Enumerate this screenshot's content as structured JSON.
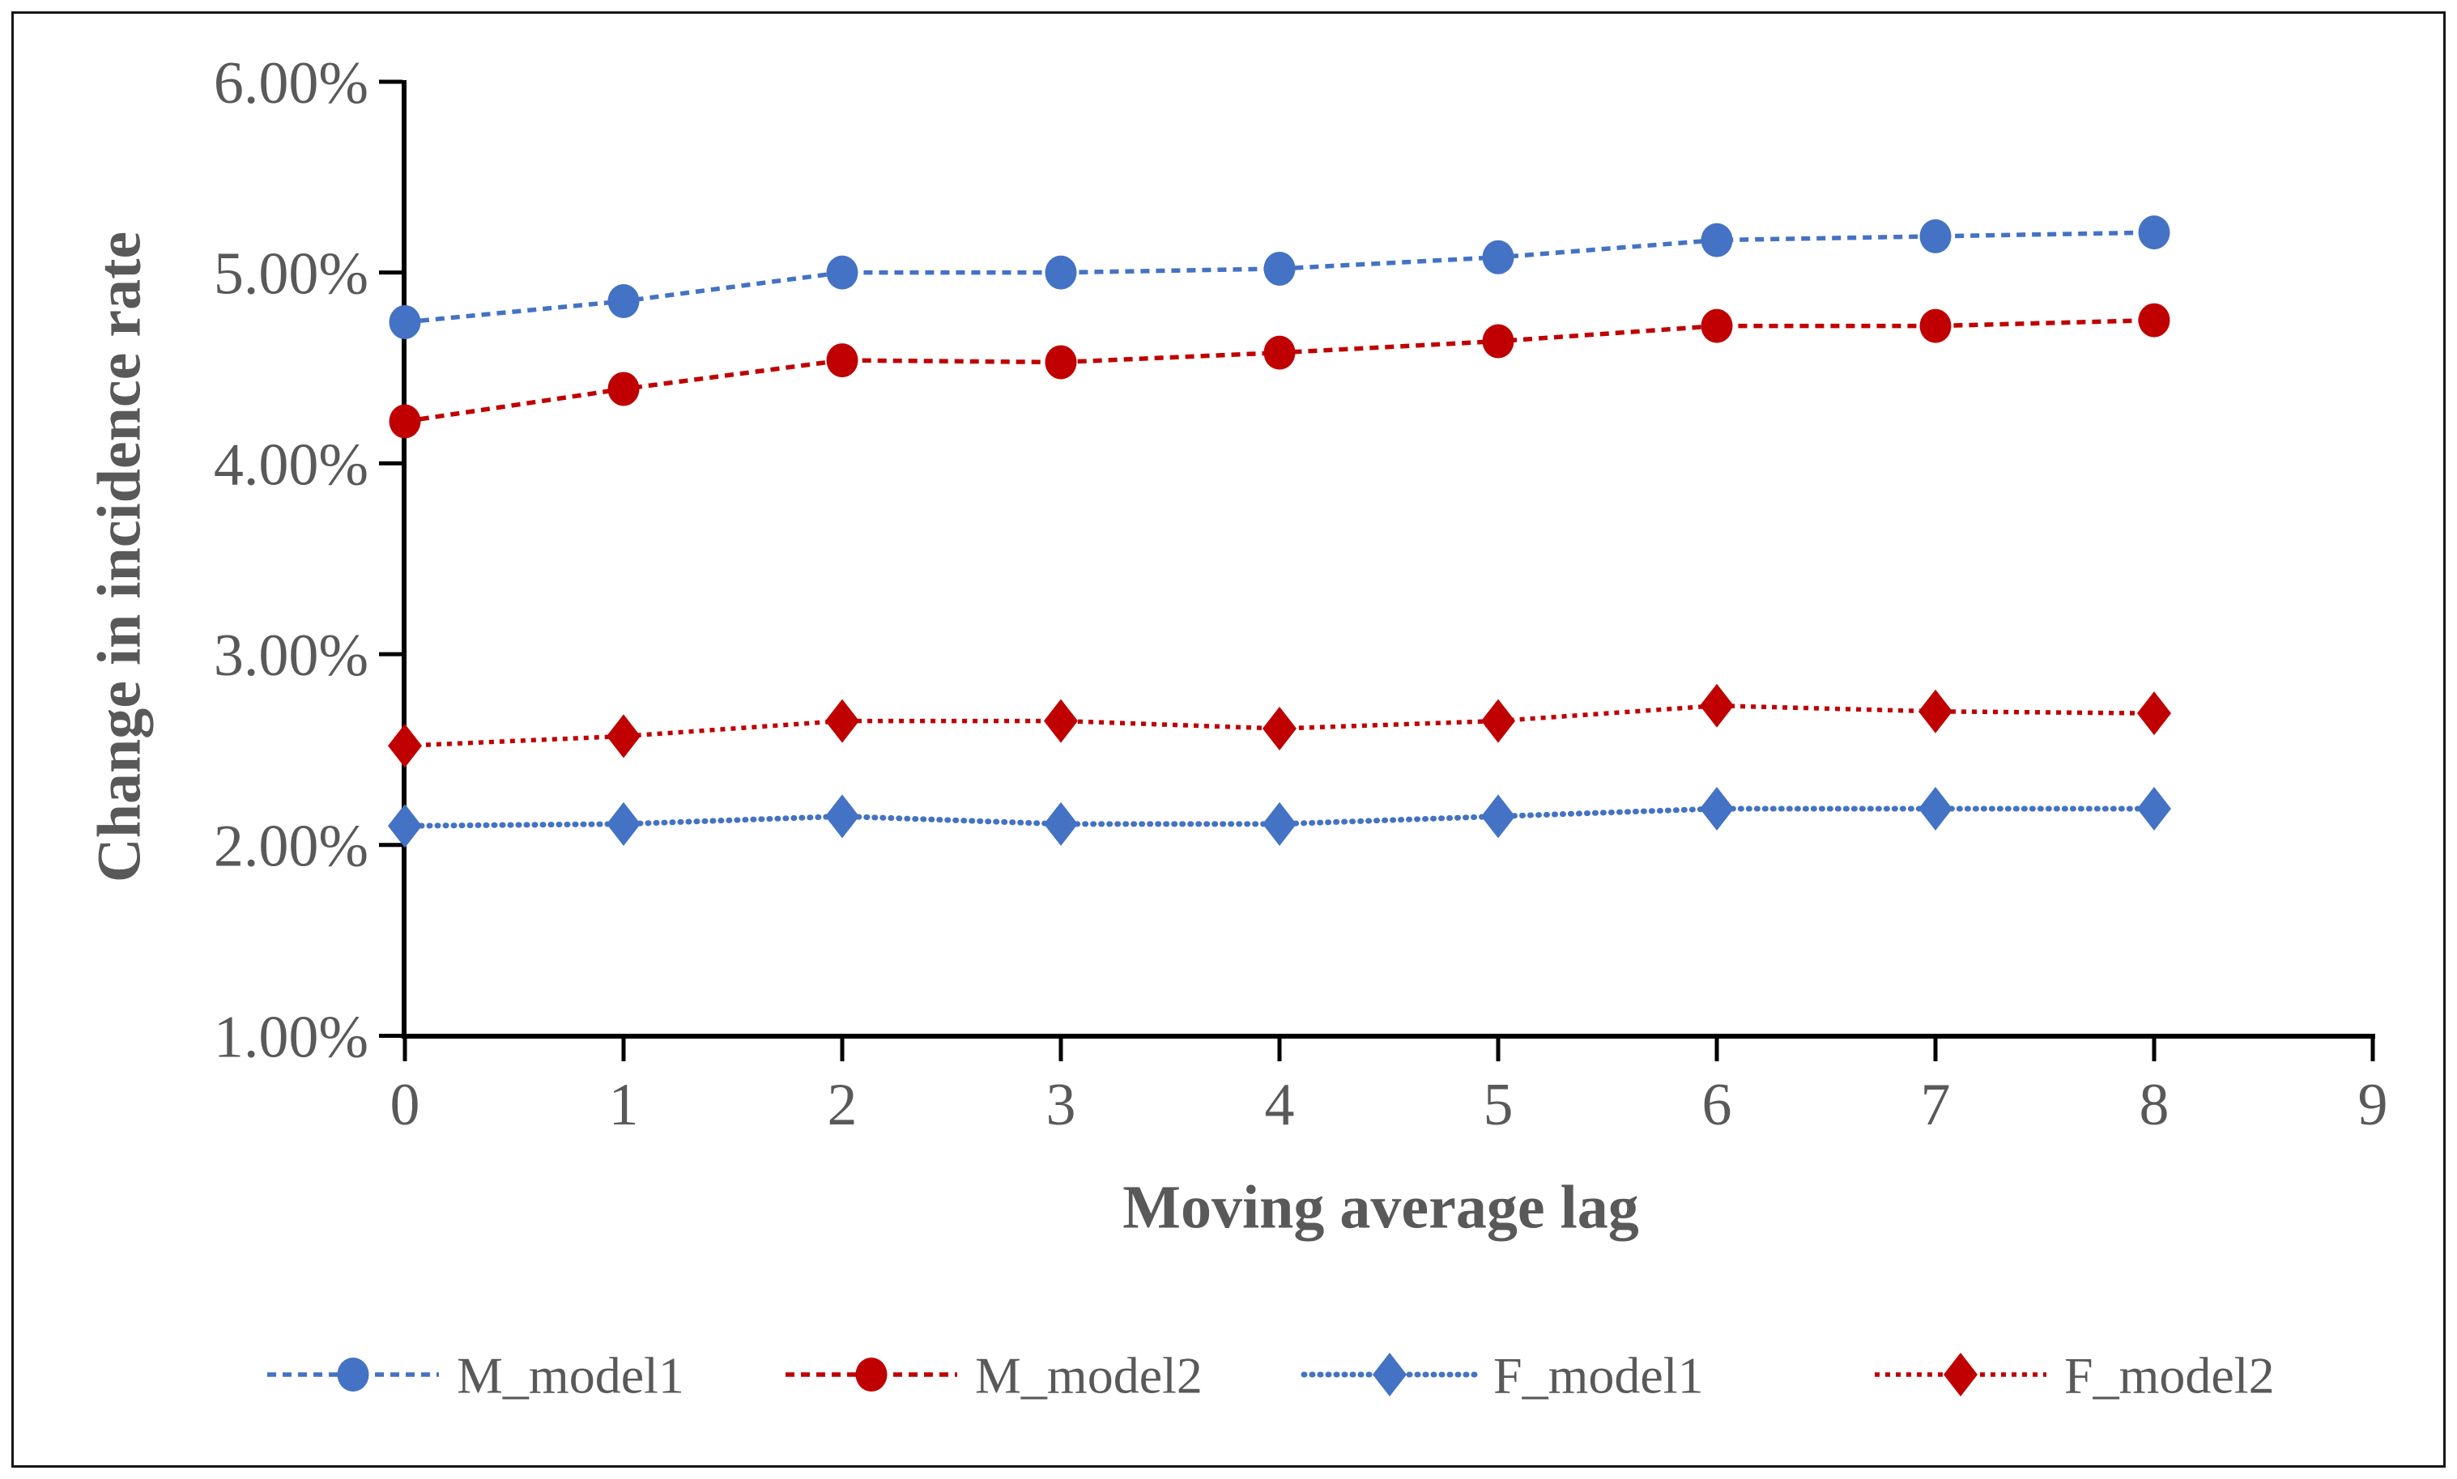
{
  "chart_data": {
    "type": "line",
    "title": "",
    "xlabel": "Moving average lag",
    "ylabel": "Change in incidence rate",
    "x": [
      0,
      1,
      2,
      3,
      4,
      5,
      6,
      7,
      8
    ],
    "xlim": [
      0,
      9
    ],
    "ylim": [
      1.0,
      6.0
    ],
    "xtick_labels": [
      "0",
      "1",
      "2",
      "3",
      "4",
      "5",
      "6",
      "7",
      "8",
      "9"
    ],
    "ytick_labels": [
      "6.00%",
      "5.00%",
      "4.00%",
      "3.00%",
      "2.00%",
      "1.00%"
    ],
    "ytick_values": [
      6,
      5,
      4,
      3,
      2,
      1
    ],
    "grid": false,
    "legend_position": "bottom",
    "series": [
      {
        "name": "M_model1",
        "color": "#4472C4",
        "marker": "circle",
        "line_style": "dashed",
        "values_pct": [
          4.74,
          4.85,
          5.0,
          5.0,
          5.02,
          5.08,
          5.17,
          5.19,
          5.21
        ]
      },
      {
        "name": "M_model2",
        "color": "#C00000",
        "marker": "circle",
        "line_style": "dashed",
        "values_pct": [
          4.22,
          4.39,
          4.54,
          4.53,
          4.58,
          4.64,
          4.72,
          4.72,
          4.75
        ]
      },
      {
        "name": "F_model1",
        "color": "#4472C4",
        "marker": "diamond",
        "line_style": "dotted",
        "values_pct": [
          2.1,
          2.11,
          2.15,
          2.11,
          2.11,
          2.15,
          2.19,
          2.19,
          2.19
        ]
      },
      {
        "name": "F_model2",
        "color": "#C00000",
        "marker": "diamond",
        "line_style": "dotted",
        "values_pct": [
          2.52,
          2.57,
          2.65,
          2.65,
          2.61,
          2.65,
          2.73,
          2.7,
          2.69
        ]
      }
    ]
  },
  "colors": {
    "axis": "#000000",
    "tick_text": "#595959",
    "title_text": "#595959",
    "frame": "#161616",
    "series_blue": "#4472C4",
    "series_red": "#C00000"
  }
}
